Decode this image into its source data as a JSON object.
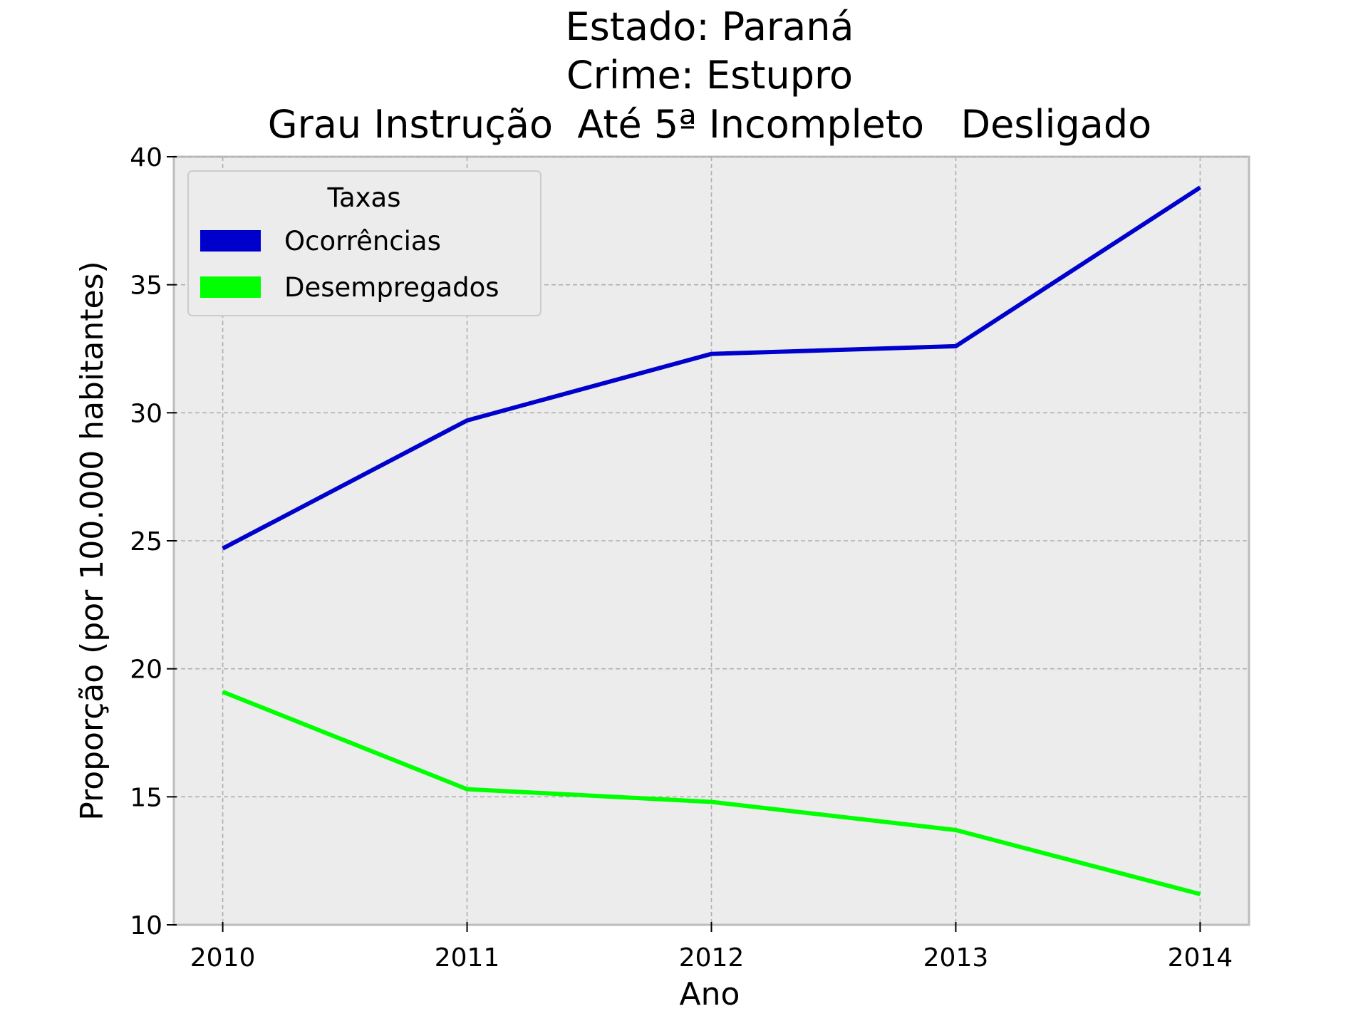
{
  "chart_data": {
    "type": "line",
    "title_lines": [
      "Estado: Paraná",
      "Crime: Estupro",
      "Grau Instrução  Até 5ª Incompleto   Desligado"
    ],
    "xlabel": "Ano",
    "ylabel": "Proporção (por 100.000 habitantes)",
    "x": [
      2010,
      2011,
      2012,
      2013,
      2014
    ],
    "x_tick_labels": [
      "2010",
      "2011",
      "2012",
      "2013",
      "2014"
    ],
    "y_ticks": [
      10,
      15,
      20,
      25,
      30,
      35,
      40
    ],
    "y_tick_labels": [
      "10",
      "15",
      "20",
      "25",
      "30",
      "35",
      "40"
    ],
    "xlim": [
      2009.8,
      2014.2
    ],
    "ylim": [
      10,
      40
    ],
    "grid": true,
    "legend": {
      "title": "Taxas",
      "placement": "top-left"
    },
    "series": [
      {
        "name": "Ocorrências",
        "color": "#0000cc",
        "values": [
          24.7,
          29.7,
          32.3,
          32.6,
          38.8
        ]
      },
      {
        "name": "Desempregados",
        "color": "#00ff00",
        "values": [
          19.1,
          15.3,
          14.8,
          13.7,
          11.2
        ]
      }
    ]
  }
}
